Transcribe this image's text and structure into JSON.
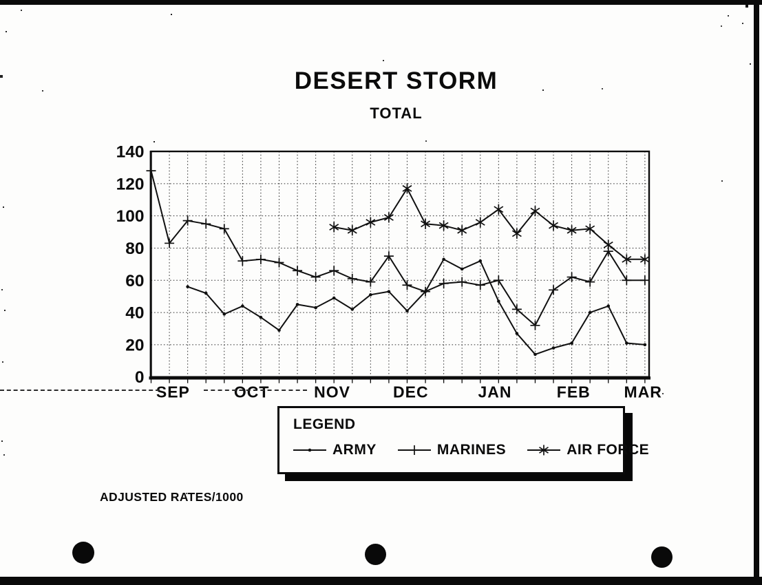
{
  "legend": {
    "title": "LEGEND",
    "entries": [
      {
        "label": "ARMY",
        "marker": "dot"
      },
      {
        "label": "MARINES",
        "marker": "plus"
      },
      {
        "label": "AIR FORCE",
        "marker": "asterisk"
      }
    ]
  },
  "chart_data": {
    "type": "line",
    "title": "DESERT STORM",
    "subtitle": "TOTAL",
    "footnote": "ADJUSTED RATES/1000",
    "x_unit": "weekly observations, Sep 1990 - Mar 1991",
    "x_axis_months": [
      {
        "label": "SEP",
        "week": 1.2
      },
      {
        "label": "OCT",
        "week": 5.5
      },
      {
        "label": "NOV",
        "week": 9.9
      },
      {
        "label": "DEC",
        "week": 14.2
      },
      {
        "label": "JAN",
        "week": 18.8
      },
      {
        "label": "FEB",
        "week": 23.1
      },
      {
        "label": "MAR",
        "week": 26.9
      }
    ],
    "ylim": [
      0,
      140
    ],
    "yticks": [
      0,
      20,
      40,
      60,
      80,
      100,
      120,
      140
    ],
    "weeks": 28,
    "grid": "dotted, weekly vertical lines and 20-unit horizontal lines",
    "legend_position": "bottom center, boxed with drop shadow",
    "series": [
      {
        "name": "ARMY",
        "marker": "dot",
        "values": [
          null,
          null,
          56,
          52,
          39,
          44,
          37,
          29,
          45,
          43,
          49,
          42,
          51,
          53,
          41,
          53,
          73,
          67,
          72,
          47,
          27,
          14,
          18,
          21,
          40,
          44,
          21,
          20
        ]
      },
      {
        "name": "MARINES",
        "marker": "plus",
        "values": [
          128,
          83,
          97,
          95,
          92,
          72,
          73,
          71,
          66,
          62,
          66,
          61,
          59,
          75,
          57,
          53,
          58,
          59,
          57,
          60,
          42,
          32,
          54,
          62,
          59,
          78,
          60,
          60
        ]
      },
      {
        "name": "AIR FORCE",
        "marker": "asterisk",
        "values": [
          null,
          null,
          null,
          null,
          null,
          null,
          null,
          null,
          null,
          null,
          93,
          91,
          96,
          99,
          117,
          95,
          94,
          91,
          96,
          104,
          89,
          103,
          94,
          91,
          92,
          82,
          73,
          73
        ]
      }
    ]
  }
}
